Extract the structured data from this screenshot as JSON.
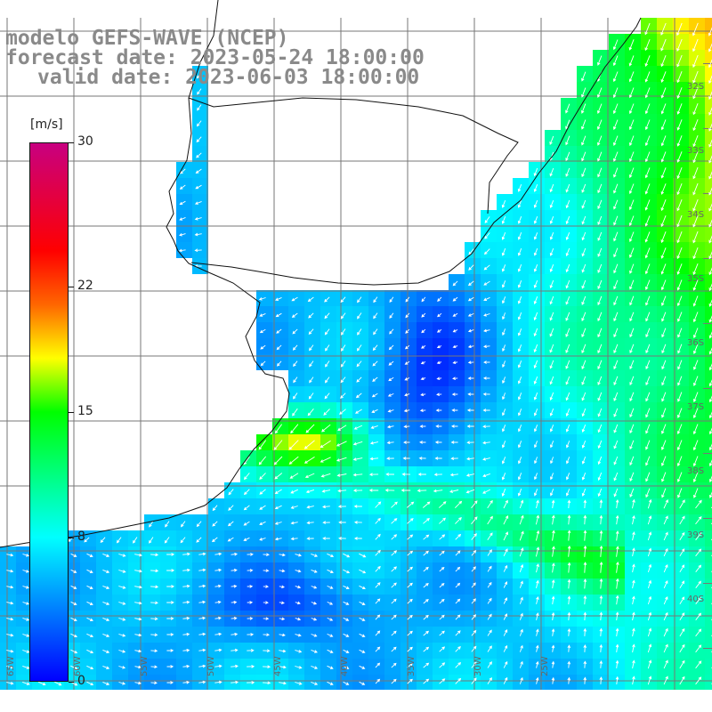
{
  "title": {
    "line1": "modelo GEFS-WAVE (NCEP)",
    "line2": "forecast date: 2023-05-24 18:00:00",
    "line3": "valid date: 2023-06-03 18:00:00"
  },
  "legend": {
    "unit": "[m/s]",
    "min": 0,
    "max": 30,
    "ticks": [
      {
        "value": 30,
        "label": "30"
      },
      {
        "value": 22,
        "label": "22"
      },
      {
        "value": 15,
        "label": "15"
      },
      {
        "value": 8,
        "label": "8"
      },
      {
        "value": 0,
        "label": "0"
      }
    ],
    "colors": [
      "#0000ff",
      "#00ffff",
      "#00ff00",
      "#ffff00",
      "#ff6600",
      "#ff0000",
      "#c80080"
    ]
  },
  "map": {
    "land_color": "#ffffff",
    "coast_color": "#111111",
    "grid_color": "#777777",
    "arrow_color": "#ffffff",
    "grid_lines": true
  },
  "lat_labels": [
    "32S",
    "33S",
    "34S",
    "35S",
    "36S",
    "37S",
    "38S",
    "39S",
    "40S"
  ],
  "lon_labels": [
    "65W",
    "60W",
    "55W",
    "50W",
    "45W",
    "40W",
    "35W",
    "30W",
    "25W"
  ]
}
